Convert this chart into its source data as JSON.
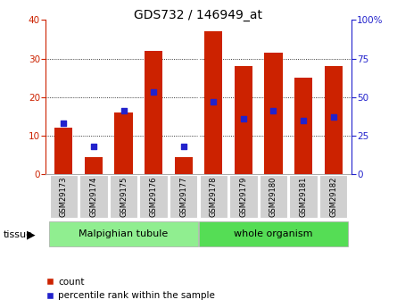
{
  "title": "GDS732 / 146949_at",
  "samples": [
    "GSM29173",
    "GSM29174",
    "GSM29175",
    "GSM29176",
    "GSM29177",
    "GSM29178",
    "GSM29179",
    "GSM29180",
    "GSM29181",
    "GSM29182"
  ],
  "counts": [
    12,
    4.5,
    16,
    32,
    4.5,
    37,
    28,
    31.5,
    25,
    28
  ],
  "percentiles": [
    33,
    18,
    41,
    53,
    18,
    47,
    36,
    41,
    35,
    37
  ],
  "tissue_groups": [
    {
      "label": "Malpighian tubule",
      "start": 0,
      "end": 5,
      "color": "#90ee90"
    },
    {
      "label": "whole organism",
      "start": 5,
      "end": 10,
      "color": "#55dd55"
    }
  ],
  "group_boundary": 5,
  "left_ylim": [
    0,
    40
  ],
  "right_ylim": [
    0,
    100
  ],
  "left_yticks": [
    0,
    10,
    20,
    30,
    40
  ],
  "right_yticks": [
    0,
    25,
    50,
    75,
    100
  ],
  "right_yticklabels": [
    "0",
    "25",
    "50",
    "75",
    "100%"
  ],
  "bar_color": "#cc2200",
  "dot_color": "#2222cc",
  "grid_color": "#000000",
  "bg_color": "#ffffff",
  "tick_label_color_left": "#cc2200",
  "tick_label_color_right": "#2222cc",
  "legend_count_label": "count",
  "legend_percentile_label": "percentile rank within the sample",
  "tissue_label": "tissue",
  "figsize": [
    4.45,
    3.45
  ],
  "dpi": 100
}
